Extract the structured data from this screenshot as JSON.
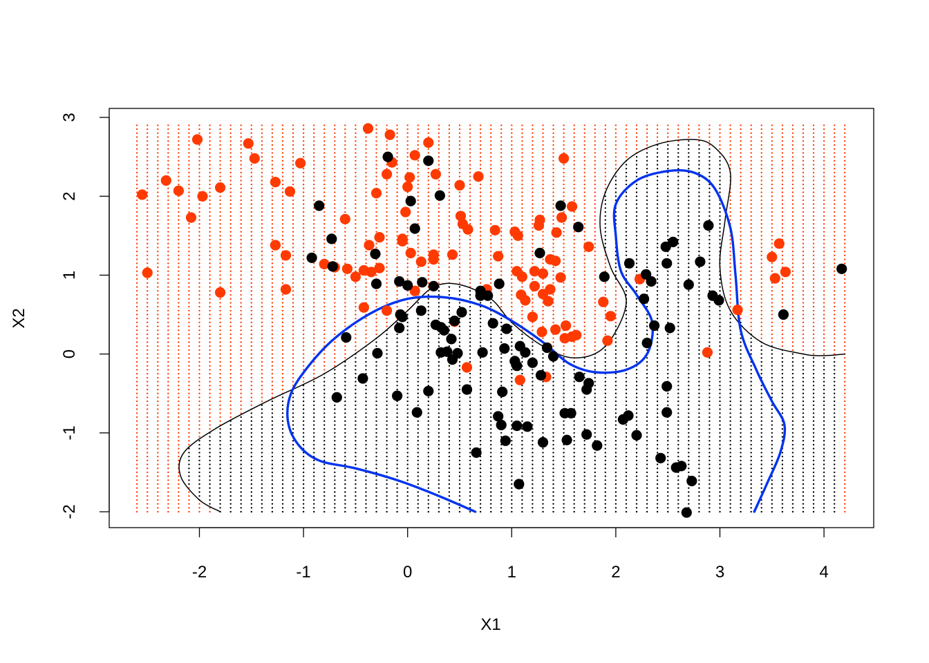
{
  "chart_data": {
    "type": "scatter",
    "title": "",
    "xlabel": "X1",
    "ylabel": "X2",
    "xlim": [
      -2.9,
      4.5
    ],
    "ylim": [
      -2.2,
      3.12
    ],
    "xticks": [
      -2,
      -1,
      0,
      1,
      2,
      3,
      4
    ],
    "yticks": [
      -2,
      -1,
      0,
      1,
      2,
      3
    ],
    "x_tick_labels": [
      "-2",
      "-1",
      "0",
      "1",
      "2",
      "3",
      "4"
    ],
    "y_tick_labels": [
      "-2",
      "-1",
      "0",
      "1",
      "2",
      "3"
    ],
    "grid": false,
    "legend": "none",
    "colors": {
      "class_red": "#ff3a00",
      "class_black": "#000000",
      "true_boundary": "#0033ee",
      "fitted_boundary": "#000000"
    },
    "grid_points": {
      "x_from": -2.6,
      "x_to": 4.2,
      "x_step": 0.1,
      "y_from": -2.0,
      "y_to": 2.9,
      "y_step": 0.05
    },
    "series": [
      {
        "name": "",
        "color": "#ff3a00",
        "points": [
          [
            -2.55,
            2.02
          ],
          [
            -2.5,
            1.03
          ],
          [
            -2.32,
            2.2
          ],
          [
            -2.2,
            2.07
          ],
          [
            -2.08,
            1.73
          ],
          [
            -2.02,
            2.72
          ],
          [
            -1.97,
            2.0
          ],
          [
            -1.8,
            2.11
          ],
          [
            -1.8,
            0.78
          ],
          [
            -1.53,
            2.67
          ],
          [
            -1.47,
            2.48
          ],
          [
            -1.27,
            1.38
          ],
          [
            -1.27,
            2.18
          ],
          [
            -1.17,
            1.25
          ],
          [
            -1.17,
            0.82
          ],
          [
            -1.13,
            2.06
          ],
          [
            -1.03,
            2.42
          ],
          [
            -0.8,
            1.14
          ],
          [
            -0.7,
            1.1
          ],
          [
            -0.6,
            1.71
          ],
          [
            -0.58,
            1.08
          ],
          [
            -0.5,
            0.98
          ],
          [
            -0.42,
            1.06
          ],
          [
            -0.42,
            0.59
          ],
          [
            -0.38,
            2.86
          ],
          [
            -0.37,
            1.38
          ],
          [
            -0.35,
            1.04
          ],
          [
            -0.3,
            2.04
          ],
          [
            -0.27,
            1.48
          ],
          [
            -0.27,
            1.09
          ],
          [
            -0.2,
            0.55
          ],
          [
            -0.2,
            2.28
          ],
          [
            -0.17,
            2.78
          ],
          [
            -0.15,
            2.43
          ],
          [
            -0.05,
            1.43
          ],
          [
            -0.05,
            1.46
          ],
          [
            -0.02,
            1.8
          ],
          [
            0.0,
            2.12
          ],
          [
            0.02,
            2.24
          ],
          [
            0.03,
            1.28
          ],
          [
            0.07,
            0.8
          ],
          [
            0.07,
            2.52
          ],
          [
            0.13,
            1.17
          ],
          [
            0.2,
            2.68
          ],
          [
            0.25,
            1.26
          ],
          [
            0.25,
            1.2
          ],
          [
            0.27,
            2.28
          ],
          [
            0.43,
            1.26
          ],
          [
            0.45,
            0.41
          ],
          [
            0.5,
            2.14
          ],
          [
            0.51,
            1.75
          ],
          [
            0.53,
            1.65
          ],
          [
            0.57,
            -0.17
          ],
          [
            0.58,
            1.58
          ],
          [
            0.68,
            2.25
          ],
          [
            0.76,
            0.82
          ],
          [
            0.84,
            1.57
          ],
          [
            0.87,
            1.24
          ],
          [
            1.03,
            1.55
          ],
          [
            1.05,
            1.05
          ],
          [
            1.06,
            1.5
          ],
          [
            1.08,
            -0.33
          ],
          [
            1.09,
            0.75
          ],
          [
            1.1,
            0.98
          ],
          [
            1.13,
            0.68
          ],
          [
            1.2,
            0.47
          ],
          [
            1.22,
            0.86
          ],
          [
            1.22,
            1.05
          ],
          [
            1.26,
            1.63
          ],
          [
            1.27,
            1.7
          ],
          [
            1.29,
            0.28
          ],
          [
            1.3,
            0.76
          ],
          [
            1.3,
            1.02
          ],
          [
            1.33,
            -0.29
          ],
          [
            1.35,
            0.67
          ],
          [
            1.37,
            0.82
          ],
          [
            1.37,
            1.2
          ],
          [
            1.42,
            1.18
          ],
          [
            1.42,
            0.31
          ],
          [
            1.43,
            1.54
          ],
          [
            1.47,
            0.97
          ],
          [
            1.48,
            1.73
          ],
          [
            1.5,
            2.48
          ],
          [
            1.51,
            0.2
          ],
          [
            1.52,
            0.36
          ],
          [
            1.58,
            1.87
          ],
          [
            1.58,
            0.22
          ],
          [
            1.62,
            0.24
          ],
          [
            1.74,
            1.36
          ],
          [
            1.88,
            0.66
          ],
          [
            1.92,
            0.17
          ],
          [
            1.95,
            0.48
          ],
          [
            2.23,
            0.95
          ],
          [
            2.88,
            0.02
          ],
          [
            3.17,
            0.56
          ],
          [
            3.5,
            1.23
          ],
          [
            3.53,
            0.96
          ],
          [
            3.57,
            1.4
          ],
          [
            3.63,
            1.04
          ]
        ]
      },
      {
        "name": "",
        "color": "#000000",
        "points": [
          [
            -0.85,
            1.88
          ],
          [
            -0.92,
            1.22
          ],
          [
            -0.73,
            1.46
          ],
          [
            -0.72,
            1.11
          ],
          [
            -0.68,
            -0.55
          ],
          [
            -0.59,
            0.21
          ],
          [
            -0.43,
            -0.31
          ],
          [
            -0.31,
            1.27
          ],
          [
            -0.3,
            0.89
          ],
          [
            -0.29,
            0.01
          ],
          [
            -0.19,
            2.5
          ],
          [
            -0.1,
            -0.53
          ],
          [
            -0.08,
            0.33
          ],
          [
            -0.08,
            0.92
          ],
          [
            -0.07,
            0.5
          ],
          [
            -0.05,
            0.47
          ],
          [
            0.0,
            0.87
          ],
          [
            0.03,
            1.94
          ],
          [
            0.07,
            1.59
          ],
          [
            0.09,
            -0.74
          ],
          [
            0.13,
            0.55
          ],
          [
            0.14,
            0.91
          ],
          [
            0.2,
            -0.47
          ],
          [
            0.2,
            2.45
          ],
          [
            0.25,
            0.86
          ],
          [
            0.27,
            0.37
          ],
          [
            0.31,
            2.01
          ],
          [
            0.32,
            0.02
          ],
          [
            0.32,
            0.34
          ],
          [
            0.35,
            0.3
          ],
          [
            0.38,
            0.03
          ],
          [
            0.42,
            0.19
          ],
          [
            0.43,
            -0.07
          ],
          [
            0.45,
            0.42
          ],
          [
            0.48,
            0.01
          ],
          [
            0.52,
            0.53
          ],
          [
            0.57,
            -0.45
          ],
          [
            0.66,
            -1.25
          ],
          [
            0.7,
            0.74
          ],
          [
            0.7,
            0.8
          ],
          [
            0.72,
            0.02
          ],
          [
            0.77,
            0.74
          ],
          [
            0.82,
            0.39
          ],
          [
            0.87,
            -0.79
          ],
          [
            0.88,
            0.89
          ],
          [
            0.9,
            -0.9
          ],
          [
            0.91,
            -0.48
          ],
          [
            0.93,
            0.07
          ],
          [
            0.94,
            -1.1
          ],
          [
            0.95,
            0.32
          ],
          [
            1.03,
            -0.09
          ],
          [
            1.05,
            -0.15
          ],
          [
            1.05,
            -0.91
          ],
          [
            1.07,
            -1.65
          ],
          [
            1.08,
            0.1
          ],
          [
            1.13,
            0.02
          ],
          [
            1.15,
            -0.92
          ],
          [
            1.2,
            -0.11
          ],
          [
            1.27,
            1.28
          ],
          [
            1.28,
            -0.27
          ],
          [
            1.3,
            -1.12
          ],
          [
            1.34,
            0.08
          ],
          [
            1.4,
            -0.03
          ],
          [
            1.47,
            1.88
          ],
          [
            1.51,
            -0.75
          ],
          [
            1.53,
            -1.09
          ],
          [
            1.57,
            -0.75
          ],
          [
            1.64,
            1.61
          ],
          [
            1.65,
            -0.29
          ],
          [
            1.72,
            -0.45
          ],
          [
            1.72,
            -1.02
          ],
          [
            1.74,
            -0.37
          ],
          [
            1.82,
            -1.16
          ],
          [
            1.89,
            0.98
          ],
          [
            2.07,
            -0.83
          ],
          [
            2.12,
            -0.78
          ],
          [
            2.13,
            1.15
          ],
          [
            2.2,
            -1.03
          ],
          [
            2.27,
            0.7
          ],
          [
            2.29,
            1.01
          ],
          [
            2.3,
            0.14
          ],
          [
            2.34,
            0.92
          ],
          [
            2.37,
            0.36
          ],
          [
            2.43,
            -1.32
          ],
          [
            2.48,
            1.36
          ],
          [
            2.49,
            -0.41
          ],
          [
            2.49,
            -0.74
          ],
          [
            2.49,
            1.15
          ],
          [
            2.52,
            0.33
          ],
          [
            2.55,
            1.42
          ],
          [
            2.58,
            -1.44
          ],
          [
            2.63,
            -1.42
          ],
          [
            2.68,
            -2.01
          ],
          [
            2.7,
            0.88
          ],
          [
            2.73,
            -1.61
          ],
          [
            2.81,
            1.17
          ],
          [
            2.89,
            1.63
          ],
          [
            2.93,
            0.74
          ],
          [
            2.99,
            0.68
          ],
          [
            3.61,
            0.5
          ],
          [
            4.17,
            1.08
          ]
        ]
      }
    ],
    "boundaries": [
      {
        "name": "",
        "style": "thin",
        "color": "#000000",
        "points": [
          [
            -1.8,
            -2.0
          ],
          [
            -2.0,
            -1.85
          ],
          [
            -2.18,
            -1.55
          ],
          [
            -2.15,
            -1.25
          ],
          [
            -1.85,
            -0.95
          ],
          [
            -1.35,
            -0.6
          ],
          [
            -0.8,
            -0.25
          ],
          [
            -0.3,
            0.2
          ],
          [
            0.0,
            0.55
          ],
          [
            0.25,
            0.85
          ],
          [
            0.5,
            0.88
          ],
          [
            0.8,
            0.7
          ],
          [
            1.0,
            0.4
          ],
          [
            1.3,
            0.1
          ],
          [
            1.6,
            -0.05
          ],
          [
            1.9,
            0.1
          ],
          [
            2.1,
            0.65
          ],
          [
            1.95,
            1.1
          ],
          [
            1.85,
            1.6
          ],
          [
            1.9,
            2.05
          ],
          [
            2.1,
            2.45
          ],
          [
            2.4,
            2.66
          ],
          [
            2.75,
            2.72
          ],
          [
            2.95,
            2.62
          ],
          [
            3.1,
            2.3
          ],
          [
            3.05,
            1.7
          ],
          [
            3.0,
            1.1
          ],
          [
            3.1,
            0.55
          ],
          [
            3.4,
            0.15
          ],
          [
            3.8,
            0.0
          ],
          [
            4.0,
            -0.02
          ],
          [
            4.2,
            0.0
          ]
        ]
      },
      {
        "name": "",
        "style": "thick",
        "color": "#0033ee",
        "points": [
          [
            0.65,
            -2.0
          ],
          [
            0.3,
            -1.8
          ],
          [
            -0.1,
            -1.6
          ],
          [
            -0.5,
            -1.45
          ],
          [
            -0.85,
            -1.35
          ],
          [
            -1.05,
            -1.15
          ],
          [
            -1.15,
            -0.85
          ],
          [
            -1.12,
            -0.5
          ],
          [
            -0.95,
            -0.15
          ],
          [
            -0.7,
            0.2
          ],
          [
            -0.35,
            0.52
          ],
          [
            0.0,
            0.7
          ],
          [
            0.35,
            0.72
          ],
          [
            0.7,
            0.62
          ],
          [
            1.0,
            0.42
          ],
          [
            1.3,
            0.15
          ],
          [
            1.55,
            -0.12
          ],
          [
            1.8,
            -0.23
          ],
          [
            2.1,
            -0.2
          ],
          [
            2.3,
            0.0
          ],
          [
            2.35,
            0.4
          ],
          [
            2.2,
            0.75
          ],
          [
            2.05,
            1.05
          ],
          [
            2.0,
            1.5
          ],
          [
            2.0,
            1.9
          ],
          [
            2.2,
            2.2
          ],
          [
            2.5,
            2.32
          ],
          [
            2.75,
            2.3
          ],
          [
            2.95,
            2.1
          ],
          [
            3.1,
            1.6
          ],
          [
            3.15,
            1.0
          ],
          [
            3.2,
            0.3
          ],
          [
            3.35,
            -0.2
          ],
          [
            3.5,
            -0.6
          ],
          [
            3.62,
            -0.9
          ],
          [
            3.58,
            -1.25
          ],
          [
            3.45,
            -1.65
          ],
          [
            3.33,
            -2.0
          ]
        ]
      }
    ]
  }
}
